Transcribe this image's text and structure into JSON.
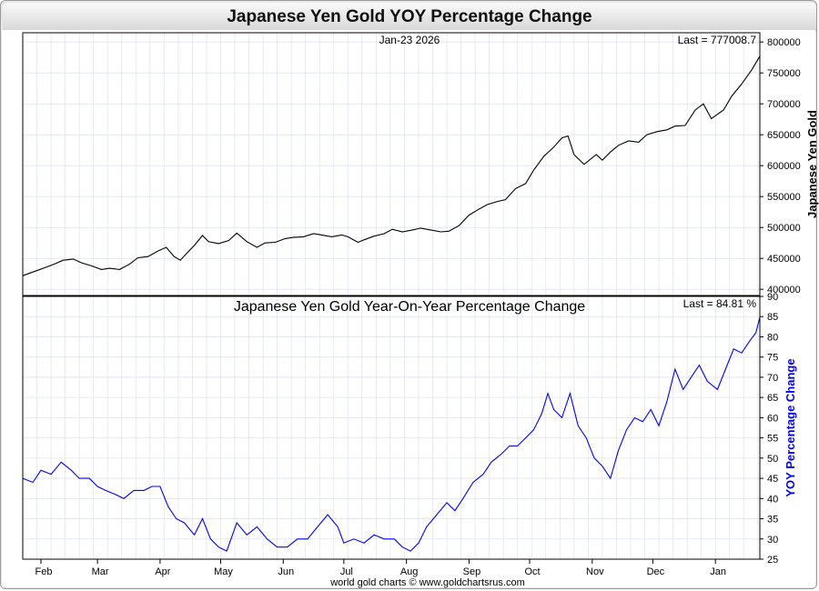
{
  "title": "Japanese Yen Gold YOY Percentage Change",
  "footer": "world gold charts © www.goldchartsrus.com",
  "colors": {
    "price": "#000000",
    "yoy": "#0000ff",
    "grid": "#dfe3ea",
    "background": "#ffffff"
  },
  "chart_data": [
    {
      "type": "line",
      "date_label": "Jan-23  2026",
      "last_label": "Last = 777008.7",
      "ylabel": "Japanese Yen Gold",
      "ylim": [
        390000,
        815000
      ],
      "yticks": [
        400000,
        450000,
        500000,
        550000,
        600000,
        650000,
        700000,
        750000,
        800000
      ],
      "xlim": [
        "2025-01-23",
        "2026-01-23"
      ],
      "xticks": [
        {
          "label": "Feb",
          "date": "2025-02-01"
        },
        {
          "label": "Mar",
          "date": "2025-03-01"
        },
        {
          "label": "Apr",
          "date": "2025-04-01"
        },
        {
          "label": "May",
          "date": "2025-05-01"
        },
        {
          "label": "Jun",
          "date": "2025-06-01"
        },
        {
          "label": "Jul",
          "date": "2025-07-01"
        },
        {
          "label": "Aug",
          "date": "2025-08-01"
        },
        {
          "label": "Sep",
          "date": "2025-09-01"
        },
        {
          "label": "Oct",
          "date": "2025-10-01"
        },
        {
          "label": "Nov",
          "date": "2025-11-01"
        },
        {
          "label": "Dec",
          "date": "2025-12-01"
        },
        {
          "label": "Jan",
          "date": "2026-01-01"
        }
      ],
      "series": [
        {
          "points": [
            [
              "2025-01-23",
              422000
            ],
            [
              "2025-01-28",
              428000
            ],
            [
              "2025-02-03",
              435000
            ],
            [
              "2025-02-07",
              440000
            ],
            [
              "2025-02-12",
              447000
            ],
            [
              "2025-02-17",
              449000
            ],
            [
              "2025-02-21",
              443000
            ],
            [
              "2025-02-26",
              438000
            ],
            [
              "2025-03-03",
              432000
            ],
            [
              "2025-03-07",
              434000
            ],
            [
              "2025-03-12",
              432000
            ],
            [
              "2025-03-17",
              441000
            ],
            [
              "2025-03-21",
              451000
            ],
            [
              "2025-03-26",
              453000
            ],
            [
              "2025-03-31",
              462000
            ],
            [
              "2025-04-04",
              468000
            ],
            [
              "2025-04-08",
              453000
            ],
            [
              "2025-04-11",
              447000
            ],
            [
              "2025-04-15",
              461000
            ],
            [
              "2025-04-18",
              471000
            ],
            [
              "2025-04-22",
              487000
            ],
            [
              "2025-04-25",
              477000
            ],
            [
              "2025-04-30",
              474000
            ],
            [
              "2025-05-05",
              479000
            ],
            [
              "2025-05-09",
              491000
            ],
            [
              "2025-05-14",
              477000
            ],
            [
              "2025-05-19",
              468000
            ],
            [
              "2025-05-23",
              475000
            ],
            [
              "2025-05-28",
              476000
            ],
            [
              "2025-06-02",
              482000
            ],
            [
              "2025-06-06",
              484000
            ],
            [
              "2025-06-11",
              485000
            ],
            [
              "2025-06-16",
              490000
            ],
            [
              "2025-06-20",
              488000
            ],
            [
              "2025-06-25",
              485000
            ],
            [
              "2025-06-30",
              488000
            ],
            [
              "2025-07-03",
              485000
            ],
            [
              "2025-07-08",
              476000
            ],
            [
              "2025-07-11",
              480000
            ],
            [
              "2025-07-16",
              486000
            ],
            [
              "2025-07-21",
              490000
            ],
            [
              "2025-07-25",
              497000
            ],
            [
              "2025-07-30",
              493000
            ],
            [
              "2025-08-04",
              496000
            ],
            [
              "2025-08-08",
              499000
            ],
            [
              "2025-08-13",
              496000
            ],
            [
              "2025-08-18",
              493000
            ],
            [
              "2025-08-22",
              494000
            ],
            [
              "2025-08-27",
              503000
            ],
            [
              "2025-09-01",
              520000
            ],
            [
              "2025-09-05",
              528000
            ],
            [
              "2025-09-10",
              537000
            ],
            [
              "2025-09-15",
              542000
            ],
            [
              "2025-09-19",
              545000
            ],
            [
              "2025-09-24",
              563000
            ],
            [
              "2025-09-29",
              571000
            ],
            [
              "2025-10-03",
              593000
            ],
            [
              "2025-10-08",
              615000
            ],
            [
              "2025-10-13",
              630000
            ],
            [
              "2025-10-17",
              645000
            ],
            [
              "2025-10-20",
              648000
            ],
            [
              "2025-10-23",
              618000
            ],
            [
              "2025-10-28",
              602000
            ],
            [
              "2025-11-03",
              618000
            ],
            [
              "2025-11-06",
              609000
            ],
            [
              "2025-11-10",
              622000
            ],
            [
              "2025-11-14",
              633000
            ],
            [
              "2025-11-19",
              640000
            ],
            [
              "2025-11-24",
              638000
            ],
            [
              "2025-11-28",
              650000
            ],
            [
              "2025-12-03",
              655000
            ],
            [
              "2025-12-08",
              658000
            ],
            [
              "2025-12-12",
              664000
            ],
            [
              "2025-12-17",
              665000
            ],
            [
              "2025-12-22",
              690000
            ],
            [
              "2025-12-26",
              700000
            ],
            [
              "2025-12-30",
              676000
            ],
            [
              "2026-01-05",
              690000
            ],
            [
              "2026-01-09",
              712000
            ],
            [
              "2026-01-14",
              732000
            ],
            [
              "2026-01-19",
              755000
            ],
            [
              "2026-01-23",
              777008.7
            ]
          ]
        }
      ]
    },
    {
      "type": "line",
      "title": "Japanese Yen Gold Year-On-Year Percentage Change",
      "last_label": "Last = 84.81 %",
      "ylabel": "YOY Percentage Change",
      "ylim": [
        25,
        90
      ],
      "yticks": [
        25,
        30,
        35,
        40,
        45,
        50,
        55,
        60,
        65,
        70,
        75,
        80,
        85,
        90
      ],
      "xlim": [
        "2025-01-23",
        "2026-01-23"
      ],
      "xticks": [
        {
          "label": "Feb",
          "date": "2025-02-01"
        },
        {
          "label": "Mar",
          "date": "2025-03-01"
        },
        {
          "label": "Apr",
          "date": "2025-04-01"
        },
        {
          "label": "May",
          "date": "2025-05-01"
        },
        {
          "label": "Jun",
          "date": "2025-06-01"
        },
        {
          "label": "Jul",
          "date": "2025-07-01"
        },
        {
          "label": "Aug",
          "date": "2025-08-01"
        },
        {
          "label": "Sep",
          "date": "2025-09-01"
        },
        {
          "label": "Oct",
          "date": "2025-10-01"
        },
        {
          "label": "Nov",
          "date": "2025-11-01"
        },
        {
          "label": "Dec",
          "date": "2025-12-01"
        },
        {
          "label": "Jan",
          "date": "2026-01-01"
        }
      ],
      "series": [
        {
          "points": [
            [
              "2025-01-23",
              45
            ],
            [
              "2025-01-28",
              44
            ],
            [
              "2025-02-01",
              47
            ],
            [
              "2025-02-06",
              46
            ],
            [
              "2025-02-11",
              49
            ],
            [
              "2025-02-16",
              47
            ],
            [
              "2025-02-20",
              45
            ],
            [
              "2025-02-25",
              45
            ],
            [
              "2025-03-01",
              43
            ],
            [
              "2025-03-05",
              42
            ],
            [
              "2025-03-10",
              41
            ],
            [
              "2025-03-14",
              40
            ],
            [
              "2025-03-19",
              42
            ],
            [
              "2025-03-24",
              42
            ],
            [
              "2025-03-28",
              43
            ],
            [
              "2025-04-01",
              43
            ],
            [
              "2025-04-05",
              38
            ],
            [
              "2025-04-09",
              35
            ],
            [
              "2025-04-13",
              34
            ],
            [
              "2025-04-18",
              31
            ],
            [
              "2025-04-22",
              35
            ],
            [
              "2025-04-26",
              30
            ],
            [
              "2025-04-30",
              28
            ],
            [
              "2025-05-04",
              27
            ],
            [
              "2025-05-09",
              34
            ],
            [
              "2025-05-14",
              31
            ],
            [
              "2025-05-19",
              33
            ],
            [
              "2025-05-24",
              30
            ],
            [
              "2025-05-29",
              28
            ],
            [
              "2025-06-03",
              28
            ],
            [
              "2025-06-08",
              30
            ],
            [
              "2025-06-13",
              30
            ],
            [
              "2025-06-18",
              33
            ],
            [
              "2025-06-23",
              36
            ],
            [
              "2025-06-28",
              33
            ],
            [
              "2025-07-01",
              29
            ],
            [
              "2025-07-06",
              30
            ],
            [
              "2025-07-11",
              29
            ],
            [
              "2025-07-16",
              31
            ],
            [
              "2025-07-21",
              30
            ],
            [
              "2025-07-26",
              30
            ],
            [
              "2025-07-30",
              28
            ],
            [
              "2025-08-03",
              27
            ],
            [
              "2025-08-07",
              29
            ],
            [
              "2025-08-11",
              33
            ],
            [
              "2025-08-16",
              36
            ],
            [
              "2025-08-21",
              39
            ],
            [
              "2025-08-25",
              37
            ],
            [
              "2025-08-29",
              40
            ],
            [
              "2025-09-03",
              44
            ],
            [
              "2025-09-08",
              46
            ],
            [
              "2025-09-12",
              49
            ],
            [
              "2025-09-17",
              51
            ],
            [
              "2025-09-21",
              53
            ],
            [
              "2025-09-25",
              53
            ],
            [
              "2025-09-29",
              55
            ],
            [
              "2025-10-03",
              57
            ],
            [
              "2025-10-07",
              61
            ],
            [
              "2025-10-10",
              66
            ],
            [
              "2025-10-13",
              62
            ],
            [
              "2025-10-17",
              60
            ],
            [
              "2025-10-21",
              66
            ],
            [
              "2025-10-25",
              58
            ],
            [
              "2025-10-29",
              55
            ],
            [
              "2025-11-02",
              50
            ],
            [
              "2025-11-06",
              48
            ],
            [
              "2025-11-10",
              45
            ],
            [
              "2025-11-14",
              52
            ],
            [
              "2025-11-18",
              57
            ],
            [
              "2025-11-22",
              60
            ],
            [
              "2025-11-26",
              59
            ],
            [
              "2025-11-30",
              62
            ],
            [
              "2025-12-04",
              58
            ],
            [
              "2025-12-08",
              64
            ],
            [
              "2025-12-12",
              72
            ],
            [
              "2025-12-16",
              67
            ],
            [
              "2025-12-20",
              70
            ],
            [
              "2025-12-24",
              73
            ],
            [
              "2025-12-28",
              69
            ],
            [
              "2026-01-02",
              67
            ],
            [
              "2026-01-06",
              72
            ],
            [
              "2026-01-10",
              77
            ],
            [
              "2026-01-14",
              76
            ],
            [
              "2026-01-18",
              79
            ],
            [
              "2026-01-21",
              81
            ],
            [
              "2026-01-23",
              84.81
            ]
          ]
        }
      ]
    }
  ]
}
